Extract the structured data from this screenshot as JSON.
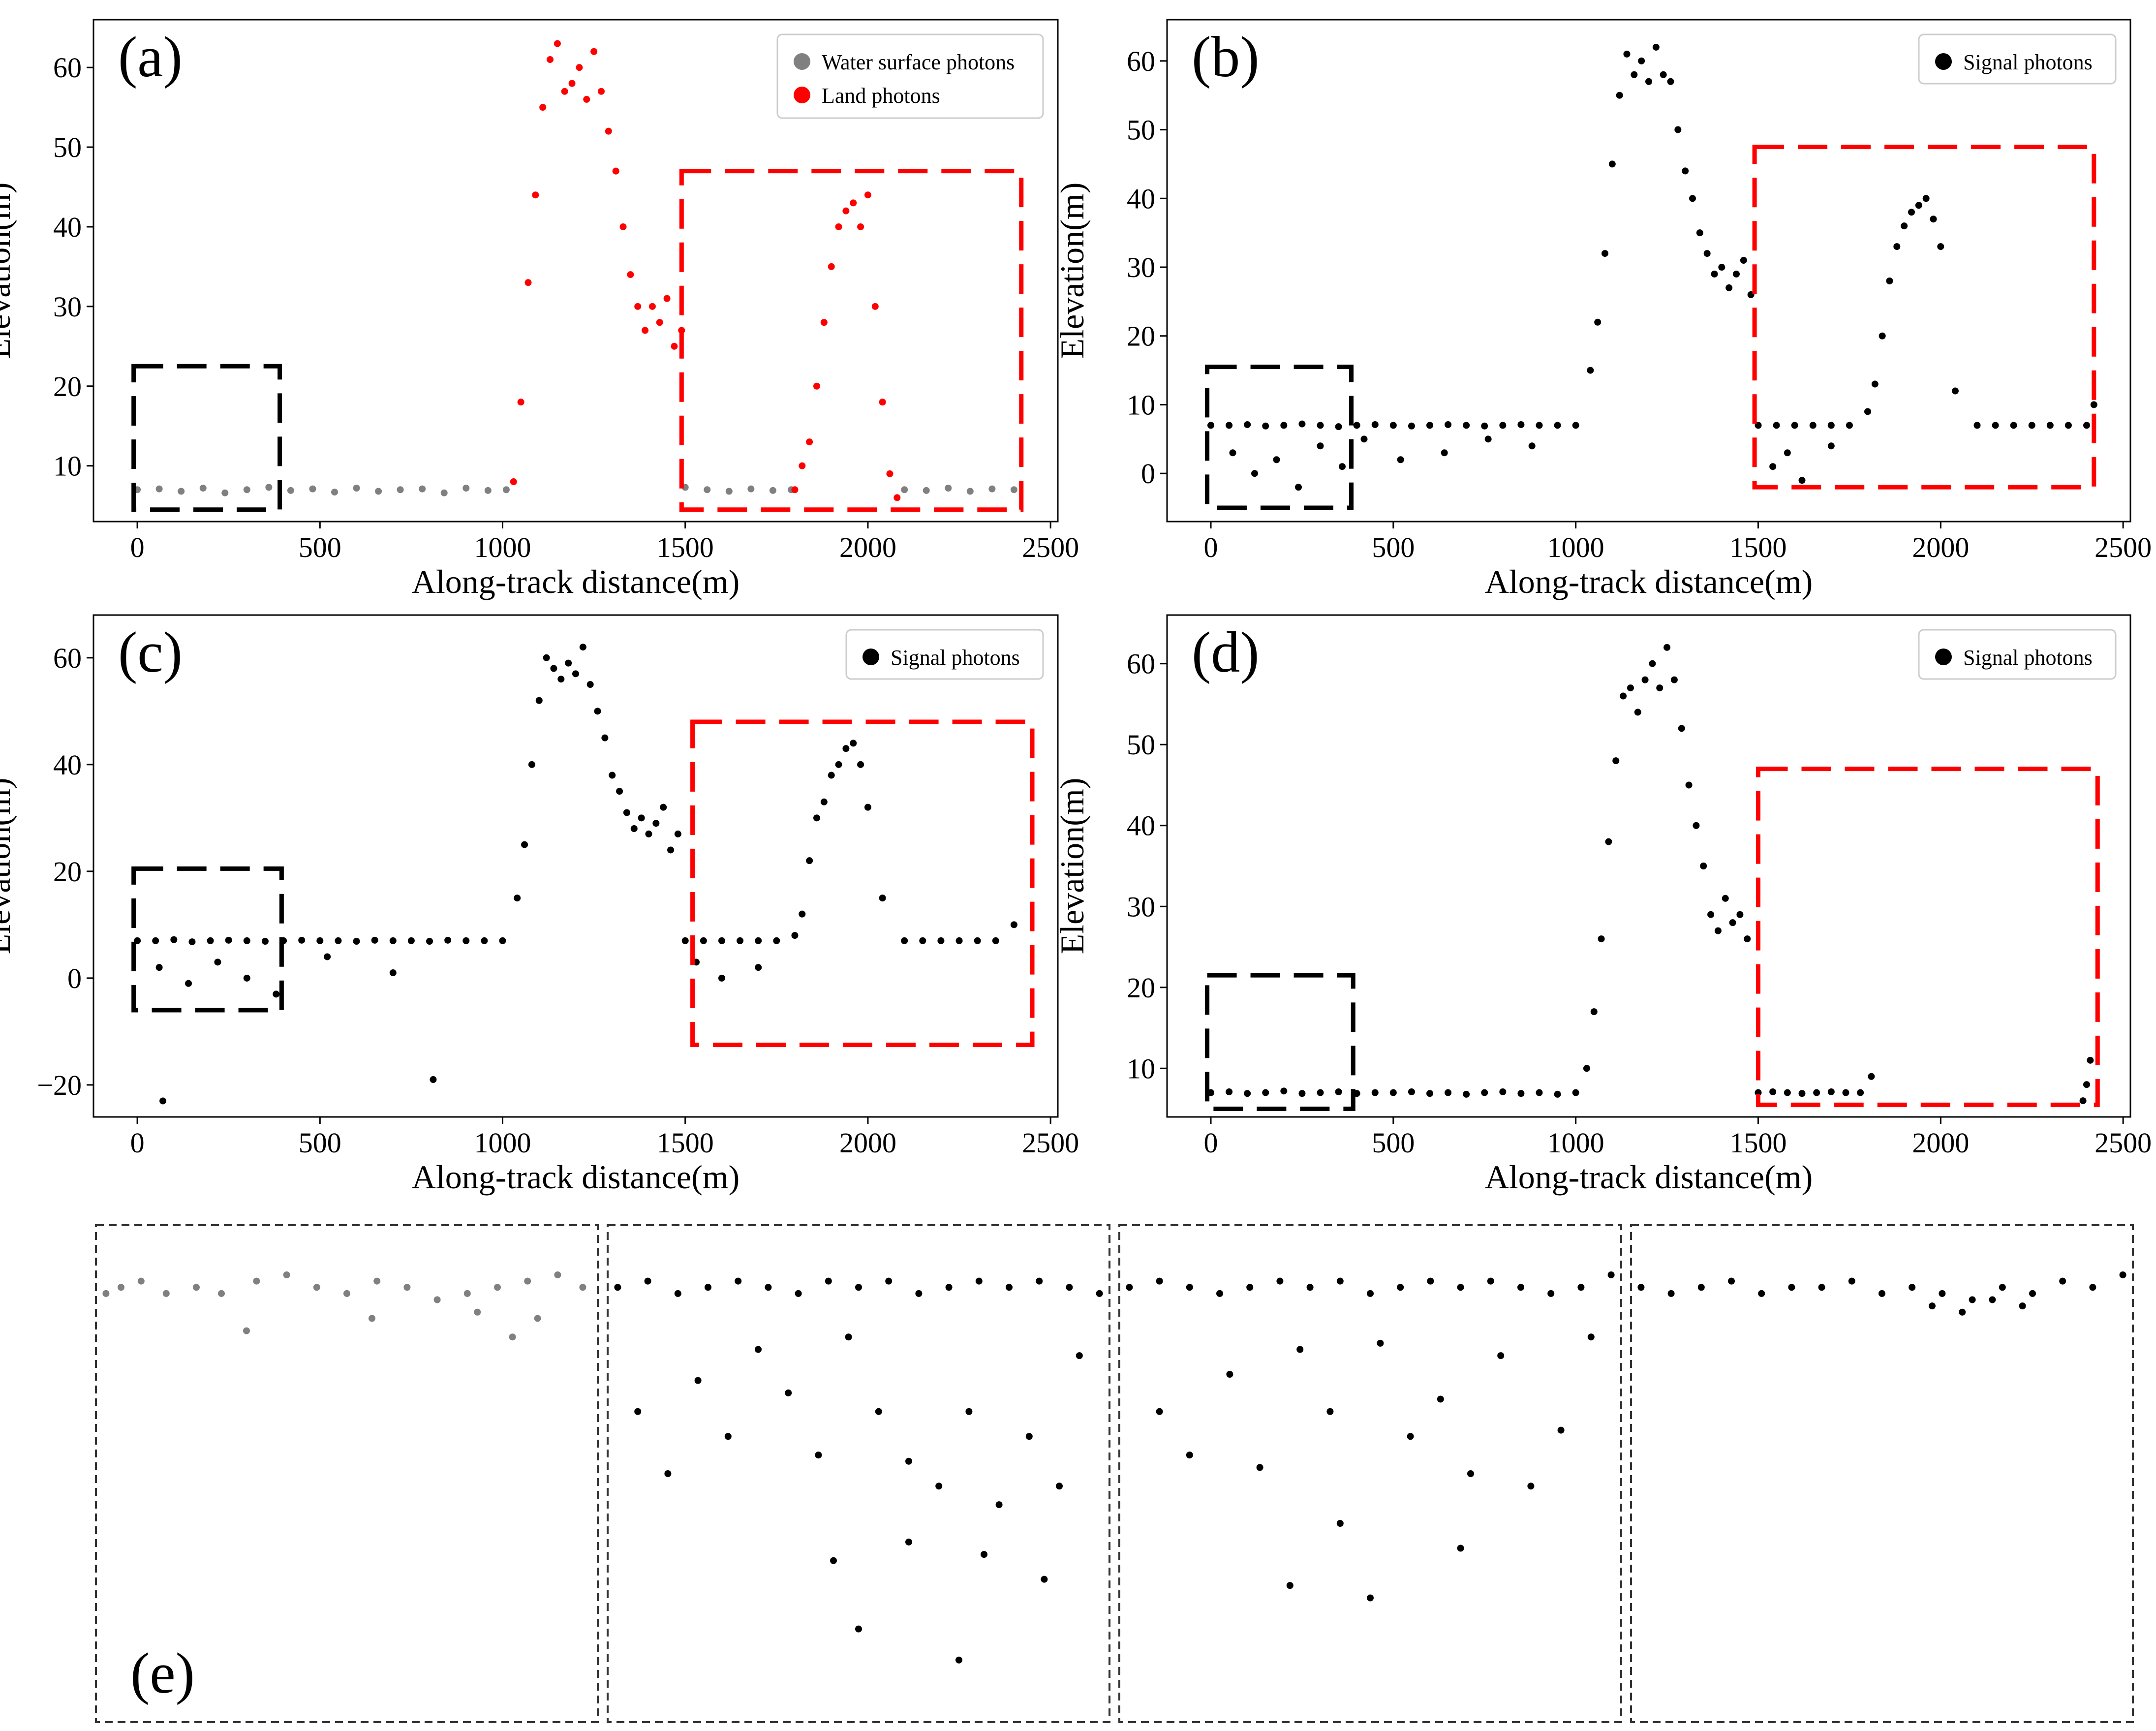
{
  "figure_colors": {
    "water": "#808080",
    "land": "#ff0000",
    "signal": "#000000",
    "box_black": "#000000",
    "box_red": "#ff0000"
  },
  "chart_data": [
    {
      "id": "a",
      "panel_label": "(a)",
      "type": "scatter",
      "xlabel": "Along-track distance(m)",
      "ylabel": "Elevation(m)",
      "xlim": [
        -120,
        2520
      ],
      "ylim": [
        3,
        66
      ],
      "xticks": [
        0,
        500,
        1000,
        1500,
        2000,
        2500
      ],
      "yticks": [
        10,
        20,
        30,
        40,
        50,
        60
      ],
      "legend_position": "top-right",
      "series": [
        {
          "name": "Water surface photons",
          "color": "#808080",
          "x": [
            0,
            60,
            120,
            180,
            240,
            300,
            360,
            420,
            480,
            540,
            600,
            660,
            720,
            780,
            840,
            900,
            960,
            1010,
            1500,
            1560,
            1620,
            1680,
            1740,
            1790,
            2100,
            2160,
            2220,
            2280,
            2340,
            2400
          ],
          "y": [
            7.0,
            7.1,
            6.8,
            7.2,
            6.6,
            7.0,
            7.3,
            6.9,
            7.1,
            6.7,
            7.2,
            6.8,
            7.0,
            7.1,
            6.6,
            7.2,
            6.9,
            7.0,
            7.3,
            7.0,
            6.8,
            7.1,
            6.9,
            7.0,
            7.0,
            6.9,
            7.2,
            6.8,
            7.1,
            7.0
          ]
        },
        {
          "name": "Land photons",
          "color": "#ff0000",
          "x": [
            1030,
            1050,
            1070,
            1090,
            1110,
            1130,
            1150,
            1170,
            1190,
            1210,
            1230,
            1250,
            1270,
            1290,
            1310,
            1330,
            1350,
            1370,
            1390,
            1410,
            1430,
            1450,
            1470,
            1490,
            1800,
            1820,
            1840,
            1860,
            1880,
            1900,
            1920,
            1940,
            1960,
            1980,
            2000,
            2020,
            2040,
            2060,
            2080
          ],
          "y": [
            8,
            18,
            33,
            44,
            55,
            61,
            63,
            57,
            58,
            60,
            56,
            62,
            57,
            52,
            47,
            40,
            34,
            30,
            27,
            30,
            28,
            31,
            25,
            27,
            7,
            10,
            13,
            20,
            28,
            35,
            40,
            42,
            43,
            40,
            44,
            30,
            18,
            9,
            6
          ]
        }
      ],
      "boxes": [
        {
          "color": "black",
          "x": [
            -10,
            390
          ],
          "y": [
            4.5,
            22.5
          ]
        },
        {
          "color": "red",
          "x": [
            1490,
            2420
          ],
          "y": [
            4.5,
            47
          ]
        }
      ]
    },
    {
      "id": "b",
      "panel_label": "(b)",
      "type": "scatter",
      "xlabel": "Along-track distance(m)",
      "ylabel": "Elevation(m)",
      "xlim": [
        -120,
        2520
      ],
      "ylim": [
        -7,
        66
      ],
      "xticks": [
        0,
        500,
        1000,
        1500,
        2000,
        2500
      ],
      "yticks": [
        0,
        10,
        20,
        30,
        40,
        50,
        60
      ],
      "legend_position": "top-right",
      "series": [
        {
          "name": "Signal photons",
          "color": "#000000",
          "x": [
            0,
            50,
            100,
            150,
            200,
            250,
            300,
            350,
            400,
            450,
            500,
            550,
            600,
            650,
            700,
            750,
            800,
            850,
            900,
            950,
            1000,
            1040,
            1060,
            1080,
            1100,
            1120,
            1140,
            1160,
            1180,
            1200,
            1220,
            1240,
            1260,
            1280,
            1300,
            1320,
            1340,
            1360,
            1380,
            1400,
            1420,
            1440,
            1460,
            1480,
            1500,
            1550,
            1600,
            1650,
            1700,
            1750,
            1800,
            1820,
            1840,
            1860,
            1880,
            1900,
            1920,
            1940,
            1960,
            1980,
            2000,
            2040,
            2100,
            2150,
            2200,
            2250,
            2300,
            2350,
            2400,
            2420,
            60,
            120,
            180,
            240,
            300,
            360,
            420,
            520,
            640,
            760,
            880,
            1540,
            1580,
            1620,
            1700
          ],
          "y": [
            7,
            7,
            7.1,
            6.9,
            7,
            7.2,
            7,
            6.8,
            7,
            7.1,
            7,
            6.9,
            7,
            7.1,
            7,
            6.9,
            7,
            7.1,
            7,
            7,
            7,
            15,
            22,
            32,
            45,
            55,
            61,
            58,
            60,
            57,
            62,
            58,
            57,
            50,
            44,
            40,
            35,
            32,
            29,
            30,
            27,
            29,
            31,
            26,
            7,
            7,
            7,
            7,
            7,
            7,
            9,
            13,
            20,
            28,
            33,
            36,
            38,
            39,
            40,
            37,
            33,
            12,
            7,
            7,
            7,
            7,
            7,
            7,
            7,
            10,
            3,
            0,
            2,
            -2,
            4,
            1,
            5,
            2,
            3,
            5,
            4,
            1,
            3,
            -1,
            4
          ]
        }
      ],
      "boxes": [
        {
          "color": "black",
          "x": [
            -10,
            385
          ],
          "y": [
            -5,
            15.5
          ]
        },
        {
          "color": "red",
          "x": [
            1490,
            2420
          ],
          "y": [
            -2,
            47.5
          ]
        }
      ]
    },
    {
      "id": "c",
      "panel_label": "(c)",
      "type": "scatter",
      "xlabel": "Along-track distance(m)",
      "ylabel": "Elevation(m)",
      "xlim": [
        -120,
        2520
      ],
      "ylim": [
        -26,
        68
      ],
      "xticks": [
        0,
        500,
        1000,
        1500,
        2000,
        2500
      ],
      "yticks": [
        -20,
        0,
        20,
        40,
        60
      ],
      "legend_position": "top-right",
      "series": [
        {
          "name": "Signal photons",
          "color": "#000000",
          "x": [
            0,
            50,
            100,
            150,
            200,
            250,
            300,
            350,
            400,
            450,
            500,
            550,
            600,
            650,
            700,
            750,
            800,
            850,
            900,
            950,
            1000,
            1040,
            1060,
            1080,
            1100,
            1120,
            1140,
            1160,
            1180,
            1200,
            1220,
            1240,
            1260,
            1280,
            1300,
            1320,
            1340,
            1360,
            1380,
            1400,
            1420,
            1440,
            1460,
            1480,
            1500,
            1550,
            1600,
            1650,
            1700,
            1750,
            1800,
            1820,
            1840,
            1860,
            1880,
            1900,
            1920,
            1940,
            1960,
            1980,
            2000,
            2040,
            2100,
            2150,
            2200,
            2250,
            2300,
            2350,
            2400,
            70,
            810,
            60,
            140,
            220,
            300,
            380,
            520,
            700,
            1530,
            1600,
            1700
          ],
          "y": [
            7,
            7,
            7.2,
            6.8,
            7,
            7.1,
            7,
            6.9,
            7,
            7.1,
            7,
            7,
            6.9,
            7.1,
            7,
            7,
            6.9,
            7.1,
            7,
            7,
            7,
            15,
            25,
            40,
            52,
            60,
            58,
            56,
            59,
            57,
            62,
            55,
            50,
            45,
            38,
            35,
            31,
            28,
            30,
            27,
            29,
            32,
            24,
            27,
            7,
            7,
            7,
            7,
            7,
            7,
            8,
            12,
            22,
            30,
            33,
            38,
            40,
            43,
            44,
            40,
            32,
            15,
            7,
            7,
            7,
            7,
            7,
            7,
            10,
            -23,
            -19,
            2,
            -1,
            3,
            0,
            -3,
            4,
            1,
            3,
            0,
            2
          ]
        }
      ],
      "boxes": [
        {
          "color": "black",
          "x": [
            -10,
            395
          ],
          "y": [
            -6,
            20.5
          ]
        },
        {
          "color": "red",
          "x": [
            1520,
            2450
          ],
          "y": [
            -12.5,
            48
          ]
        }
      ]
    },
    {
      "id": "d",
      "panel_label": "(d)",
      "type": "scatter",
      "xlabel": "Along-track distance(m)",
      "ylabel": "Elevation(m)",
      "xlim": [
        -120,
        2520
      ],
      "ylim": [
        4,
        66
      ],
      "xticks": [
        0,
        500,
        1000,
        1500,
        2000,
        2500
      ],
      "yticks": [
        10,
        20,
        30,
        40,
        50,
        60
      ],
      "legend_position": "top-right",
      "series": [
        {
          "name": "Signal photons",
          "color": "#000000",
          "x": [
            0,
            50,
            100,
            150,
            200,
            250,
            300,
            350,
            400,
            450,
            500,
            550,
            600,
            650,
            700,
            750,
            800,
            850,
            900,
            950,
            1000,
            1030,
            1050,
            1070,
            1090,
            1110,
            1130,
            1150,
            1170,
            1190,
            1210,
            1230,
            1250,
            1270,
            1290,
            1310,
            1330,
            1350,
            1370,
            1390,
            1410,
            1430,
            1450,
            1470,
            1500,
            1540,
            1580,
            1620,
            1660,
            1700,
            1740,
            1780,
            1810,
            2390,
            2400,
            2410
          ],
          "y": [
            7,
            7.1,
            6.9,
            7,
            7.2,
            6.9,
            7,
            7.1,
            6.9,
            7,
            7,
            7.1,
            6.9,
            7,
            6.8,
            7,
            7.1,
            6.9,
            7,
            6.8,
            7,
            10,
            17,
            26,
            38,
            48,
            56,
            57,
            54,
            58,
            60,
            57,
            62,
            58,
            52,
            45,
            40,
            35,
            29,
            27,
            31,
            28,
            29,
            26,
            7,
            7.1,
            7,
            6.9,
            7,
            7.1,
            7,
            7,
            9,
            6,
            8,
            11
          ]
        }
      ],
      "boxes": [
        {
          "color": "black",
          "x": [
            -10,
            390
          ],
          "y": [
            5,
            21.5
          ]
        },
        {
          "color": "red",
          "x": [
            1500,
            2430
          ],
          "y": [
            5.5,
            47
          ]
        }
      ]
    },
    {
      "id": "e",
      "panel_label": "(e)",
      "type": "scatter",
      "subpanels": [
        {
          "series": "Water surface photons",
          "color": "#808080",
          "x": [
            2,
            5,
            9,
            14,
            20,
            25,
            32,
            38,
            44,
            50,
            56,
            62,
            68,
            74,
            80,
            86,
            92,
            97,
            30,
            55,
            76,
            83,
            88
          ],
          "y": [
            6.9,
            7.0,
            7.1,
            6.9,
            7.0,
            6.9,
            7.1,
            7.2,
            7.0,
            6.9,
            7.1,
            7.0,
            6.8,
            6.9,
            7.0,
            7.1,
            7.2,
            7.0,
            6.3,
            6.5,
            6.6,
            6.2,
            6.5
          ]
        },
        {
          "series": "Signal photons",
          "color": "#000000",
          "x": [
            2,
            8,
            14,
            20,
            26,
            32,
            38,
            44,
            50,
            56,
            62,
            68,
            74,
            80,
            86,
            92,
            98,
            6,
            12,
            18,
            24,
            30,
            36,
            42,
            48,
            54,
            60,
            66,
            72,
            78,
            84,
            90,
            94,
            45,
            50,
            60,
            70,
            75,
            87
          ],
          "y": [
            7.0,
            7.1,
            6.9,
            7.0,
            7.1,
            7.0,
            6.9,
            7.1,
            7.0,
            7.1,
            6.9,
            7.0,
            7.1,
            7.0,
            7.1,
            7.0,
            6.9,
            5.0,
            4.0,
            5.5,
            4.6,
            6.0,
            5.3,
            4.3,
            6.2,
            5.0,
            4.2,
            3.8,
            5.0,
            3.5,
            4.6,
            3.8,
            5.9,
            2.6,
            1.5,
            2.9,
            1.0,
            2.7,
            2.3
          ]
        },
        {
          "series": "Signal photons",
          "color": "#000000",
          "x": [
            2,
            8,
            14,
            20,
            26,
            32,
            38,
            44,
            50,
            56,
            62,
            68,
            74,
            80,
            86,
            92,
            98,
            8,
            14,
            22,
            28,
            36,
            42,
            52,
            58,
            64,
            70,
            76,
            82,
            88,
            94,
            34,
            44,
            50,
            68
          ],
          "y": [
            7.0,
            7.1,
            7.0,
            6.9,
            7.0,
            7.1,
            7.0,
            7.1,
            6.9,
            7.0,
            7.1,
            7.0,
            7.1,
            7.0,
            6.9,
            7.0,
            7.2,
            5.0,
            4.3,
            5.6,
            4.1,
            6.0,
            5.0,
            6.1,
            4.6,
            5.2,
            4.0,
            5.9,
            3.8,
            4.7,
            6.2,
            2.2,
            3.2,
            2.0,
            2.8
          ]
        },
        {
          "series": "Signal photons",
          "color": "#000000",
          "x": [
            2,
            8,
            14,
            20,
            26,
            32,
            38,
            44,
            50,
            56,
            62,
            68,
            74,
            80,
            86,
            92,
            98,
            60,
            66,
            72,
            78
          ],
          "y": [
            7.0,
            6.9,
            7.0,
            7.1,
            6.9,
            7.0,
            7.0,
            7.1,
            6.9,
            7.0,
            6.9,
            6.8,
            7.0,
            6.9,
            7.1,
            7.0,
            7.2,
            6.7,
            6.6,
            6.8,
            6.7
          ]
        }
      ]
    }
  ]
}
